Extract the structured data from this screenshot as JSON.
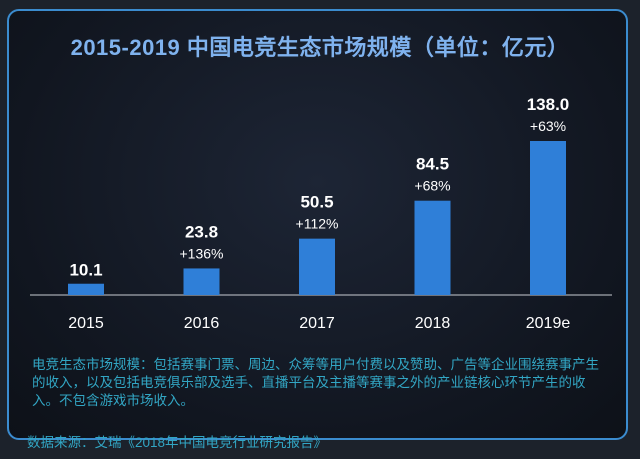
{
  "chart_data": {
    "type": "bar",
    "title": "2015-2019 中国电竞生态市场规模（单位：亿元）",
    "categories": [
      "2015",
      "2016",
      "2017",
      "2018",
      "2019e"
    ],
    "values": [
      10.1,
      23.8,
      50.5,
      84.5,
      138.0
    ],
    "value_labels": [
      "10.1",
      "23.8",
      "50.5",
      "84.5",
      "138.0"
    ],
    "growth_labels": [
      "",
      "+136%",
      "+112%",
      "+68%",
      "+63%"
    ],
    "bar_color": "#2f7fd8",
    "ylim": [
      0,
      140
    ],
    "grid": false
  },
  "note": "电竞生态市场规模：包括赛事门票、周边、众筹等用户付费以及赞助、广告等企业围绕赛事产生的收入，以及包括电竞俱乐部及选手、直播平台及主播等赛事之外的产业链核心环节产生的收入。不包含游戏市场收入。",
  "source": "数据来源：艾瑞《2018年中国电竞行业研究报告》"
}
